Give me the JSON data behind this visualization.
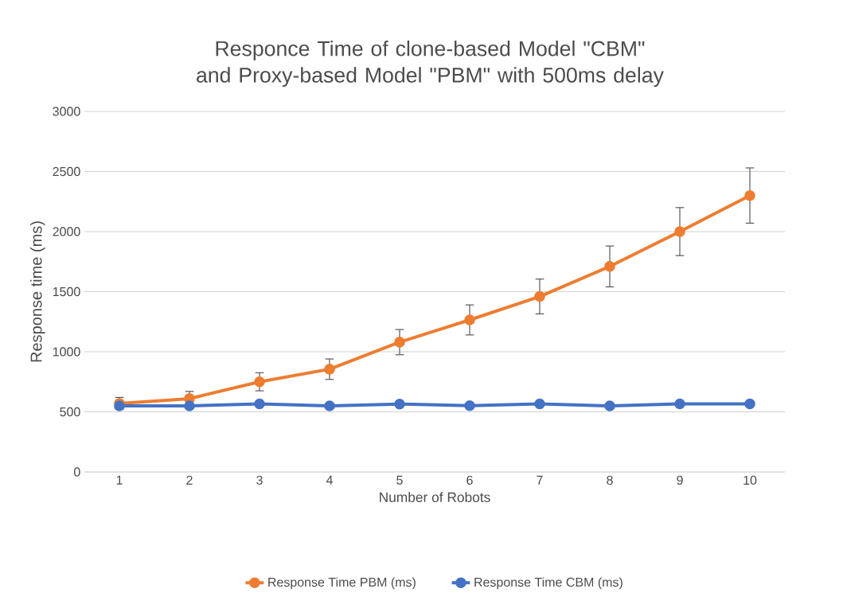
{
  "chart_data": {
    "type": "line",
    "title": "Responce Time of clone-based Model \"CBM\" and Proxy-based Model \"PBM\" with 500ms delay",
    "xlabel": "Number of Robots",
    "ylabel": "Response time (ms)",
    "categories": [
      "1",
      "2",
      "3",
      "4",
      "5",
      "6",
      "7",
      "8",
      "9",
      "10"
    ],
    "series": [
      {
        "name": "Response Time PBM (ms)",
        "color": "#ed7d31",
        "values": [
          570,
          610,
          750,
          855,
          1080,
          1265,
          1460,
          1710,
          2000,
          2300
        ],
        "errors": [
          50,
          60,
          75,
          85,
          105,
          125,
          145,
          170,
          200,
          230
        ]
      },
      {
        "name": "Response Time CBM (ms)",
        "color": "#4472c4",
        "values": [
          550,
          550,
          566,
          550,
          565,
          551,
          566,
          550,
          566,
          566
        ]
      }
    ],
    "ylim": [
      0,
      3000
    ],
    "yticks": [
      0,
      500,
      1000,
      1500,
      2000,
      2500,
      3000
    ],
    "grid": "y",
    "legend": "bottom",
    "marker": "circle",
    "line_style": "solid"
  }
}
